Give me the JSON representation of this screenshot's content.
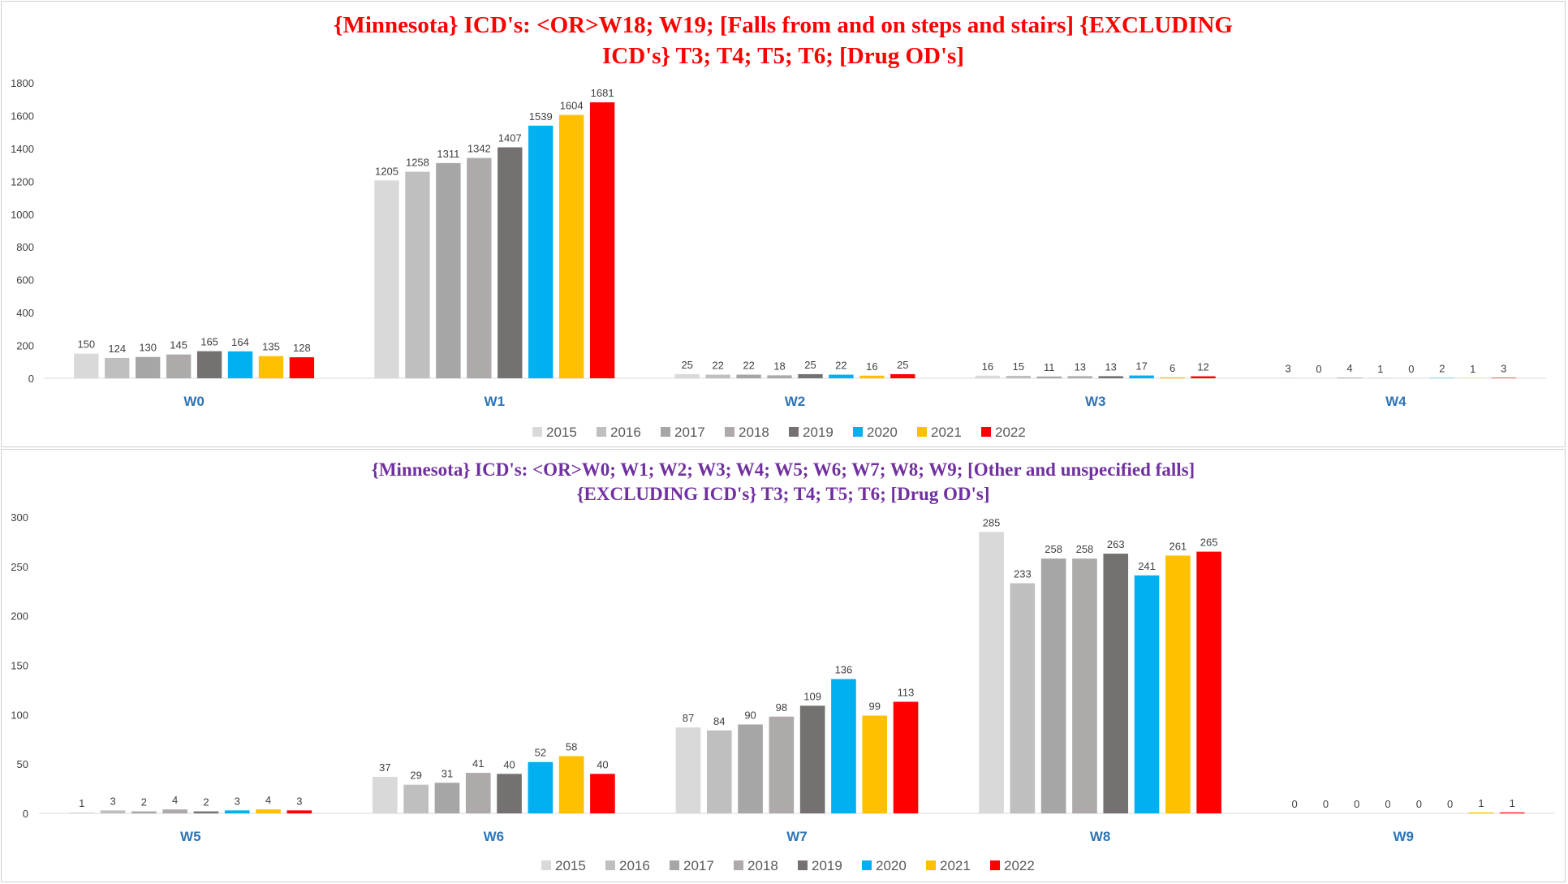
{
  "legend_colors": {
    "2015": "#d9d9d9",
    "2016": "#bfbfbf",
    "2017": "#a6a6a6",
    "2018": "#aeaaaa",
    "2019": "#767171",
    "2020": "#00b0f0",
    "2021": "#ffc000",
    "2022": "#ff0000"
  },
  "chart_data": [
    {
      "type": "bar",
      "title": "{Minnesota} ICD's: <OR>W18; W19;  [Falls from and on steps and stairs] {EXCLUDING ICD's} T3; T4; T5; T6; [Drug OD's]",
      "categories": [
        "W0",
        "W1",
        "W2",
        "W3",
        "W4"
      ],
      "ylim": [
        0,
        1800
      ],
      "yticks": [
        0,
        200,
        400,
        600,
        800,
        1000,
        1200,
        1400,
        1600,
        1800
      ],
      "xlabel": "",
      "ylabel": "",
      "legend_position": "bottom",
      "series": [
        {
          "name": "2015",
          "values": [
            150,
            1205,
            25,
            16,
            3
          ]
        },
        {
          "name": "2016",
          "values": [
            124,
            1258,
            22,
            15,
            0
          ]
        },
        {
          "name": "2017",
          "values": [
            130,
            1311,
            22,
            11,
            4
          ]
        },
        {
          "name": "2018",
          "values": [
            145,
            1342,
            18,
            13,
            1
          ]
        },
        {
          "name": "2019",
          "values": [
            165,
            1407,
            25,
            13,
            0
          ]
        },
        {
          "name": "2020",
          "values": [
            164,
            1539,
            22,
            17,
            2
          ]
        },
        {
          "name": "2021",
          "values": [
            135,
            1604,
            16,
            6,
            1
          ]
        },
        {
          "name": "2022",
          "values": [
            128,
            1681,
            25,
            12,
            3
          ]
        }
      ]
    },
    {
      "type": "bar",
      "title": "{Minnesota} ICD's: <OR>W0; W1; W2; W3; W4; W5; W6; W7; W8; W9;  [Other and unspecified falls] {EXCLUDING ICD's} T3; T4; T5; T6; [Drug OD's]",
      "categories": [
        "W5",
        "W6",
        "W7",
        "W8",
        "W9"
      ],
      "ylim": [
        0,
        300
      ],
      "yticks": [
        0,
        50,
        100,
        150,
        200,
        250,
        300
      ],
      "xlabel": "",
      "ylabel": "",
      "legend_position": "bottom",
      "series": [
        {
          "name": "2015",
          "values": [
            1,
            37,
            87,
            285,
            0
          ]
        },
        {
          "name": "2016",
          "values": [
            3,
            29,
            84,
            233,
            0
          ]
        },
        {
          "name": "2017",
          "values": [
            2,
            31,
            90,
            258,
            0
          ]
        },
        {
          "name": "2018",
          "values": [
            4,
            41,
            98,
            258,
            0
          ]
        },
        {
          "name": "2019",
          "values": [
            2,
            40,
            109,
            263,
            0
          ]
        },
        {
          "name": "2020",
          "values": [
            3,
            52,
            136,
            241,
            0
          ]
        },
        {
          "name": "2021",
          "values": [
            4,
            58,
            99,
            261,
            1
          ]
        },
        {
          "name": "2022",
          "values": [
            3,
            40,
            113,
            265,
            1
          ]
        }
      ]
    }
  ]
}
